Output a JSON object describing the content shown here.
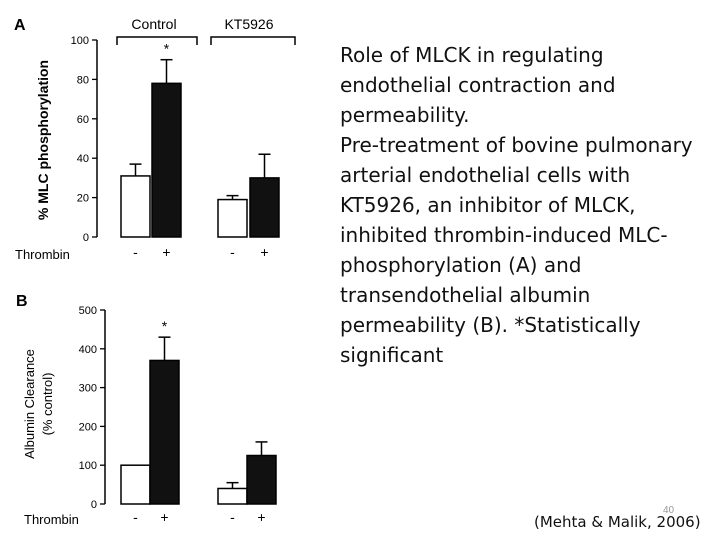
{
  "caption": {
    "line1": "Role of MLCK in regulating endothelial contraction and permeability.",
    "line2": "Pre-treatment of bovine pulmonary arterial endothelial cells with KT5926, an inhibitor of MLCK, inhibited  thrombin-induced MLC-phosphorylation (A) and  transendothelial albumin permeability (B). *Statistically significant"
  },
  "citation": "(Mehta & Malik, 2006)",
  "slide_number": "40",
  "chart_data": [
    {
      "type": "bar",
      "panel": "A",
      "ylabel": "% MLC  phosphorylation",
      "ylim": [
        0,
        100
      ],
      "yticks": [
        0,
        20,
        40,
        60,
        80,
        100
      ],
      "row_label": "Thrombin",
      "groups": [
        "Control",
        "KT5926"
      ],
      "categories": [
        "-",
        "+",
        "-",
        "+"
      ],
      "values": [
        31,
        78,
        19,
        30
      ],
      "errors": [
        6,
        12,
        2,
        12
      ],
      "fills": [
        "white",
        "black",
        "white",
        "black"
      ],
      "significant": [
        false,
        true,
        false,
        false
      ],
      "annotation": "*"
    },
    {
      "type": "bar",
      "panel": "B",
      "ylabel": "Albumin Clearance",
      "ylabel2": "(% control)",
      "ylim": [
        0,
        500
      ],
      "yticks": [
        0,
        100,
        200,
        300,
        400,
        500
      ],
      "row_label": "Thrombin",
      "categories": [
        "-",
        "+",
        "-",
        "+"
      ],
      "values": [
        100,
        370,
        40,
        125
      ],
      "errors": [
        0,
        60,
        15,
        35
      ],
      "fills": [
        "white",
        "black",
        "white",
        "black"
      ],
      "significant": [
        false,
        true,
        false,
        false
      ],
      "annotation": "*"
    }
  ]
}
